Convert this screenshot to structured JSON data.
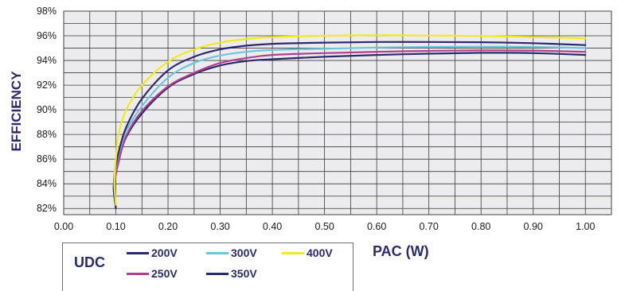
{
  "chart_data": {
    "type": "line",
    "xlabel": "PAC (W)",
    "ylabel": "EFFICIENCY",
    "xlim": [
      0.0,
      1.05
    ],
    "ylim": [
      81.5,
      98
    ],
    "x_ticks": [
      "0.00",
      "0.10",
      "0.20",
      "0.30",
      "0.40",
      "0.50",
      "0.60",
      "0.70",
      "0.80",
      "0.90",
      "1.00"
    ],
    "y_ticks": [
      "82%",
      "84%",
      "86%",
      "88%",
      "90%",
      "92%",
      "94%",
      "96%",
      "98%"
    ],
    "grid": true,
    "legend": {
      "title": "UDC",
      "placement": "bottom-left"
    },
    "series": [
      {
        "name": "200V",
        "color": "#2b2a6e",
        "points": [
          [
            0.1,
            82.2
          ],
          [
            0.096,
            83.5
          ],
          [
            0.098,
            84.7
          ],
          [
            0.105,
            85.9
          ],
          [
            0.12,
            87.8
          ],
          [
            0.15,
            89.7
          ],
          [
            0.2,
            91.8
          ],
          [
            0.25,
            92.9
          ],
          [
            0.3,
            93.6
          ],
          [
            0.35,
            93.95
          ],
          [
            0.4,
            94.1
          ],
          [
            0.5,
            94.3
          ],
          [
            0.6,
            94.45
          ],
          [
            0.7,
            94.55
          ],
          [
            0.8,
            94.62
          ],
          [
            0.9,
            94.6
          ],
          [
            1.0,
            94.45
          ]
        ]
      },
      {
        "name": "250V",
        "color": "#b23f8e",
        "points": [
          [
            0.1,
            82.1
          ],
          [
            0.097,
            83.3
          ],
          [
            0.099,
            84.5
          ],
          [
            0.106,
            85.9
          ],
          [
            0.12,
            87.9
          ],
          [
            0.15,
            89.9
          ],
          [
            0.2,
            91.9
          ],
          [
            0.25,
            93.0
          ],
          [
            0.3,
            93.8
          ],
          [
            0.35,
            94.2
          ],
          [
            0.4,
            94.45
          ],
          [
            0.5,
            94.6
          ],
          [
            0.6,
            94.7
          ],
          [
            0.7,
            94.78
          ],
          [
            0.8,
            94.82
          ],
          [
            0.9,
            94.8
          ],
          [
            1.0,
            94.7
          ]
        ]
      },
      {
        "name": "300V",
        "color": "#6ec6dc",
        "points": [
          [
            0.1,
            82.2
          ],
          [
            0.097,
            83.8
          ],
          [
            0.1,
            85.3
          ],
          [
            0.108,
            86.8
          ],
          [
            0.12,
            88.3
          ],
          [
            0.15,
            90.3
          ],
          [
            0.2,
            92.6
          ],
          [
            0.25,
            93.8
          ],
          [
            0.3,
            94.4
          ],
          [
            0.35,
            94.7
          ],
          [
            0.4,
            94.85
          ],
          [
            0.5,
            94.95
          ],
          [
            0.6,
            95.05
          ],
          [
            0.7,
            95.1
          ],
          [
            0.8,
            95.12
          ],
          [
            0.9,
            95.1
          ],
          [
            1.0,
            95.0
          ]
        ]
      },
      {
        "name": "350V",
        "color": "#2b2a6e",
        "points": [
          [
            0.1,
            82.0
          ],
          [
            0.096,
            83.6
          ],
          [
            0.098,
            85.0
          ],
          [
            0.106,
            86.7
          ],
          [
            0.12,
            88.6
          ],
          [
            0.15,
            90.9
          ],
          [
            0.2,
            93.2
          ],
          [
            0.25,
            94.3
          ],
          [
            0.3,
            94.9
          ],
          [
            0.35,
            95.2
          ],
          [
            0.4,
            95.35
          ],
          [
            0.5,
            95.45
          ],
          [
            0.6,
            95.5
          ],
          [
            0.7,
            95.5
          ],
          [
            0.8,
            95.48
          ],
          [
            0.9,
            95.4
          ],
          [
            1.0,
            95.25
          ]
        ]
      },
      {
        "name": "400V",
        "color": "#f2ea1d",
        "points": [
          [
            0.1,
            82.3
          ],
          [
            0.097,
            84.2
          ],
          [
            0.1,
            86.0
          ],
          [
            0.105,
            88.0
          ],
          [
            0.12,
            90.0
          ],
          [
            0.15,
            92.0
          ],
          [
            0.2,
            93.9
          ],
          [
            0.25,
            94.9
          ],
          [
            0.3,
            95.45
          ],
          [
            0.35,
            95.75
          ],
          [
            0.4,
            95.9
          ],
          [
            0.5,
            96.0
          ],
          [
            0.6,
            96.05
          ],
          [
            0.7,
            96.02
          ],
          [
            0.8,
            95.98
          ],
          [
            0.9,
            95.9
          ],
          [
            1.0,
            95.8
          ]
        ]
      }
    ]
  }
}
